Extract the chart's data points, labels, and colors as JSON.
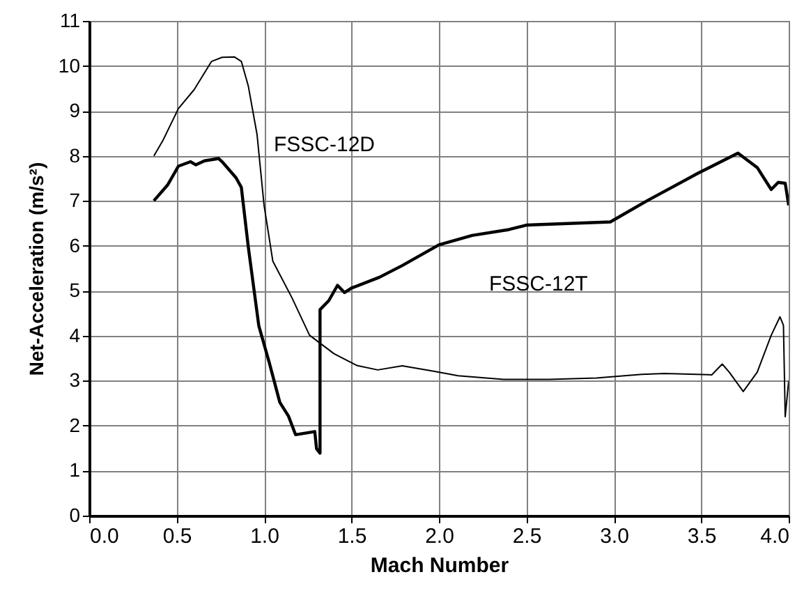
{
  "chart_data": {
    "type": "line",
    "xlabel": "Mach Number",
    "ylabel": "Net-Acceleration (m/s²)",
    "xlim": [
      0,
      4
    ],
    "ylim": [
      0,
      11
    ],
    "xticks": [
      {
        "value": 0,
        "label": "0.0"
      },
      {
        "value": 0.5,
        "label": "0.5"
      },
      {
        "value": 1,
        "label": "1.0"
      },
      {
        "value": 1.5,
        "label": "1.5"
      },
      {
        "value": 2,
        "label": "2.0"
      },
      {
        "value": 2.5,
        "label": "2.5"
      },
      {
        "value": 3,
        "label": "3.0"
      },
      {
        "value": 3.5,
        "label": "3.5"
      },
      {
        "value": 4,
        "label": "4.0"
      }
    ],
    "yticks": [
      0,
      1,
      2,
      3,
      4,
      5,
      6,
      7,
      8,
      9,
      10,
      11
    ],
    "grid": true,
    "marker": "none",
    "line_style": "solid",
    "series": [
      {
        "name": "FSSC-12D",
        "color": "#000000",
        "x": [
          0.37,
          0.42,
          0.51,
          0.6,
          0.7,
          0.76,
          0.83,
          0.87,
          0.91,
          0.96,
          1.0,
          1.05,
          1.16,
          1.26,
          1.4,
          1.53,
          1.65,
          1.79,
          1.97,
          2.11,
          2.37,
          2.63,
          2.9,
          3.16,
          3.29,
          3.56,
          3.62,
          3.66,
          3.74,
          3.82,
          3.9,
          3.95,
          3.97,
          3.98,
          4.0
        ],
        "values": [
          8.0,
          8.33,
          9.05,
          9.47,
          10.1,
          10.19,
          10.2,
          10.1,
          9.55,
          8.47,
          6.9,
          5.66,
          4.84,
          4.01,
          3.6,
          3.34,
          3.24,
          3.33,
          3.21,
          3.11,
          3.03,
          3.03,
          3.06,
          3.14,
          3.16,
          3.13,
          3.37,
          3.19,
          2.76,
          3.19,
          4.01,
          4.42,
          4.23,
          2.2,
          3.0
        ]
      },
      {
        "name": "FSSC-12T",
        "color": "#000000",
        "x": [
          0.37,
          0.45,
          0.51,
          0.58,
          0.61,
          0.66,
          0.74,
          0.76,
          0.84,
          0.87,
          0.91,
          0.97,
          1.03,
          1.09,
          1.14,
          1.18,
          1.26,
          1.29,
          1.3,
          1.32,
          1.32,
          1.37,
          1.42,
          1.46,
          1.5,
          1.66,
          1.79,
          2.0,
          2.19,
          2.4,
          2.5,
          2.98,
          3.19,
          3.48,
          3.71,
          3.82,
          3.9,
          3.94,
          3.98,
          4.0
        ],
        "values": [
          7.0,
          7.36,
          7.77,
          7.87,
          7.8,
          7.89,
          7.94,
          7.87,
          7.51,
          7.3,
          5.97,
          4.22,
          3.4,
          2.52,
          2.21,
          1.8,
          1.85,
          1.87,
          1.49,
          1.39,
          4.58,
          4.78,
          5.12,
          4.96,
          5.06,
          5.3,
          5.56,
          6.02,
          6.23,
          6.36,
          6.46,
          6.53,
          7.0,
          7.61,
          8.06,
          7.74,
          7.25,
          7.41,
          7.39,
          6.9
        ]
      }
    ]
  }
}
